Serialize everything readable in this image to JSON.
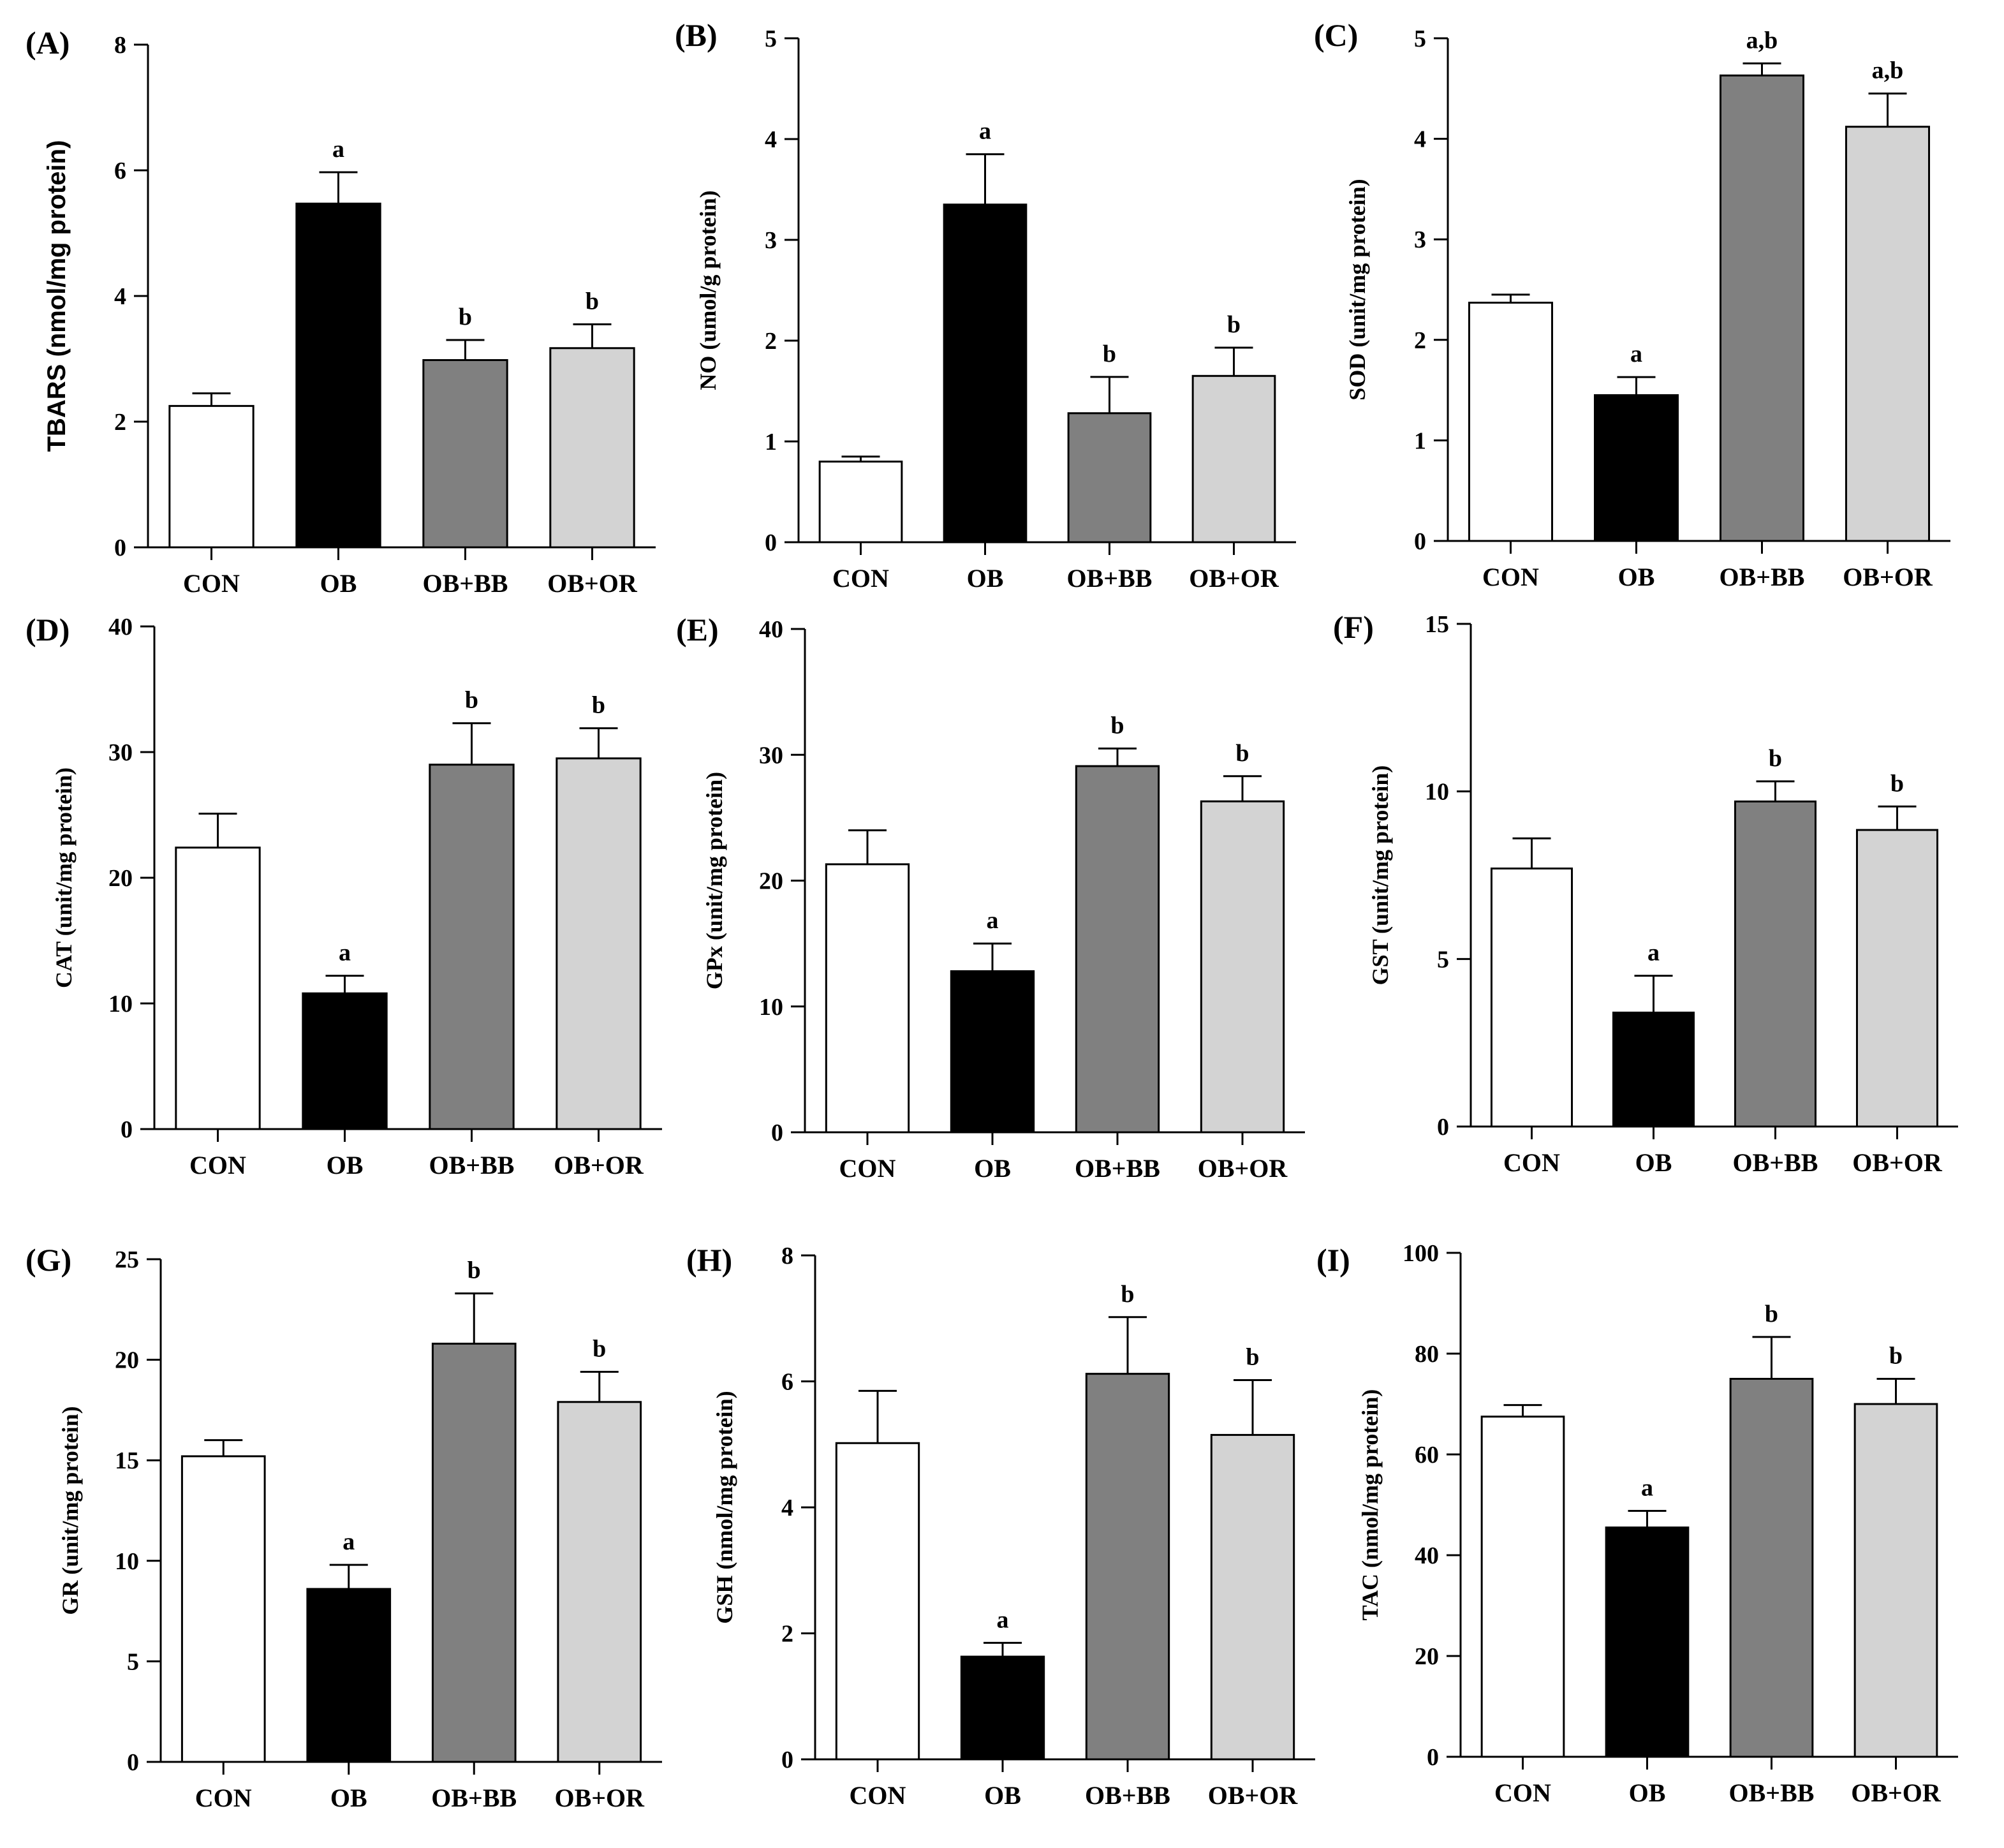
{
  "chart_data": [
    {
      "type": "bar",
      "panel": "(A)",
      "ylabel": "TBARS (nmol/mg protein)",
      "ylabel_font": "sans",
      "categories": [
        "CON",
        "OB",
        "OB+BB",
        "OB+OR"
      ],
      "values": [
        2.25,
        5.47,
        2.98,
        3.17
      ],
      "errors": [
        0.2,
        0.5,
        0.32,
        0.38
      ],
      "significance": [
        "",
        "a",
        "b",
        "b"
      ],
      "ylim": [
        0,
        8
      ],
      "yticks": [
        "0",
        "2",
        "4",
        "6",
        "8"
      ],
      "ytick_values": [
        0,
        2,
        4,
        6,
        8
      ],
      "bar_colors": [
        "#ffffff",
        "#000000",
        "#808080",
        "#d3d3d3"
      ]
    },
    {
      "type": "bar",
      "panel": "(B)",
      "ylabel": "NO (umol/g protein)",
      "categories": [
        "CON",
        "OB",
        "OB+BB",
        "OB+OR"
      ],
      "values": [
        0.8,
        3.35,
        1.28,
        1.65
      ],
      "errors": [
        0.05,
        0.5,
        0.36,
        0.28
      ],
      "significance": [
        "",
        "a",
        "b",
        "b"
      ],
      "ylim": [
        0,
        5
      ],
      "yticks": [
        "0",
        "1",
        "2",
        "3",
        "4",
        "5"
      ],
      "ytick_values": [
        0,
        1,
        2,
        3,
        4,
        5
      ],
      "bar_colors": [
        "#ffffff",
        "#000000",
        "#808080",
        "#d3d3d3"
      ]
    },
    {
      "type": "bar",
      "panel": "(C)",
      "ylabel": "SOD (unit/mg protein)",
      "categories": [
        "CON",
        "OB",
        "OB+BB",
        "OB+OR"
      ],
      "values": [
        2.37,
        1.45,
        4.63,
        4.12
      ],
      "errors": [
        0.08,
        0.18,
        0.12,
        0.33
      ],
      "significance": [
        "",
        "a",
        "a,b",
        "a,b"
      ],
      "ylim": [
        0,
        5
      ],
      "yticks": [
        "0",
        "1",
        "2",
        "3",
        "4",
        "5"
      ],
      "ytick_values": [
        0,
        1,
        2,
        3,
        4,
        5
      ],
      "bar_colors": [
        "#ffffff",
        "#000000",
        "#808080",
        "#d3d3d3"
      ]
    },
    {
      "type": "bar",
      "panel": "(D)",
      "ylabel": "CAT (unit/mg protein)",
      "categories": [
        "CON",
        "OB",
        "OB+BB",
        "OB+OR"
      ],
      "values": [
        22.4,
        10.8,
        29.0,
        29.5
      ],
      "errors": [
        2.7,
        1.4,
        3.3,
        2.4
      ],
      "significance": [
        "",
        "a",
        "b",
        "b"
      ],
      "ylim": [
        0,
        40
      ],
      "yticks": [
        "0",
        "10",
        "20",
        "30",
        "40"
      ],
      "ytick_values": [
        0,
        10,
        20,
        30,
        40
      ],
      "bar_colors": [
        "#ffffff",
        "#000000",
        "#808080",
        "#d3d3d3"
      ]
    },
    {
      "type": "bar",
      "panel": "(E)",
      "ylabel": "GPx (unit/mg protein)",
      "categories": [
        "CON",
        "OB",
        "OB+BB",
        "OB+OR"
      ],
      "values": [
        21.3,
        12.8,
        29.1,
        26.3
      ],
      "errors": [
        2.7,
        2.2,
        1.4,
        2.0
      ],
      "significance": [
        "",
        "a",
        "b",
        "b"
      ],
      "ylim": [
        0,
        40
      ],
      "yticks": [
        "0",
        "10",
        "20",
        "30",
        "40"
      ],
      "ytick_values": [
        0,
        10,
        20,
        30,
        40
      ],
      "bar_colors": [
        "#ffffff",
        "#000000",
        "#808080",
        "#d3d3d3"
      ]
    },
    {
      "type": "bar",
      "panel": "(F)",
      "ylabel": "GST (unit/mg protein)",
      "categories": [
        "CON",
        "OB",
        "OB+BB",
        "OB+OR"
      ],
      "values": [
        7.7,
        3.4,
        9.7,
        8.85
      ],
      "errors": [
        0.9,
        1.1,
        0.6,
        0.7
      ],
      "significance": [
        "",
        "a",
        "b",
        "b"
      ],
      "ylim": [
        0,
        15
      ],
      "yticks": [
        "0",
        "5",
        "10",
        "15"
      ],
      "ytick_values": [
        0,
        5,
        10,
        15
      ],
      "bar_colors": [
        "#ffffff",
        "#000000",
        "#808080",
        "#d3d3d3"
      ]
    },
    {
      "type": "bar",
      "panel": "(G)",
      "ylabel": "GR (unit/mg protein)",
      "categories": [
        "CON",
        "OB",
        "OB+BB",
        "OB+OR"
      ],
      "values": [
        15.2,
        8.6,
        20.8,
        17.9
      ],
      "errors": [
        0.8,
        1.2,
        2.5,
        1.5
      ],
      "significance": [
        "",
        "a",
        "b",
        "b"
      ],
      "ylim": [
        0,
        25
      ],
      "yticks": [
        "0",
        "5",
        "10",
        "15",
        "20",
        "25"
      ],
      "ytick_values": [
        0,
        5,
        10,
        15,
        20,
        25
      ],
      "bar_colors": [
        "#ffffff",
        "#000000",
        "#808080",
        "#d3d3d3"
      ]
    },
    {
      "type": "bar",
      "panel": "(H)",
      "ylabel": "GSH (nmol/mg protein)",
      "categories": [
        "CON",
        "OB",
        "OB+BB",
        "OB+OR"
      ],
      "values": [
        5.02,
        1.63,
        6.12,
        5.15
      ],
      "errors": [
        0.83,
        0.22,
        0.9,
        0.87
      ],
      "significance": [
        "",
        "a",
        "b",
        "b"
      ],
      "ylim": [
        0,
        8
      ],
      "yticks": [
        "0",
        "2",
        "4",
        "6",
        "8"
      ],
      "ytick_values": [
        0,
        2,
        4,
        6,
        8
      ],
      "bar_colors": [
        "#ffffff",
        "#000000",
        "#808080",
        "#d3d3d3"
      ]
    },
    {
      "type": "bar",
      "panel": "(I)",
      "ylabel": "TAC (nmol/mg protein)",
      "categories": [
        "CON",
        "OB",
        "OB+BB",
        "OB+OR"
      ],
      "values": [
        67.5,
        45.5,
        75.0,
        70.0
      ],
      "errors": [
        2.3,
        3.3,
        8.3,
        5.0
      ],
      "significance": [
        "",
        "a",
        "b",
        "b"
      ],
      "ylim": [
        0,
        100
      ],
      "yticks": [
        "0",
        "20",
        "40",
        "60",
        "80",
        "100"
      ],
      "ytick_values": [
        0,
        20,
        40,
        60,
        80,
        100
      ],
      "bar_colors": [
        "#ffffff",
        "#000000",
        "#808080",
        "#d3d3d3"
      ]
    }
  ]
}
